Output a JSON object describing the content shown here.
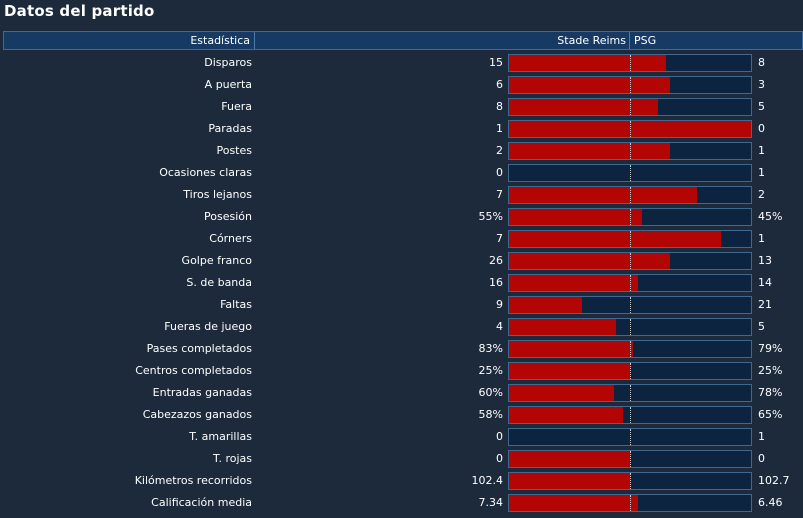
{
  "title": "Datos del partido",
  "header": {
    "stat_label": "Estadística",
    "home_team": "Stade Reims",
    "away_team": "PSG"
  },
  "colors": {
    "home_bar": "#b40505",
    "bar_background": "#0c2440"
  },
  "rows": [
    {
      "label": "Disparos",
      "home": "15",
      "away": "8",
      "home_share": 0.65
    },
    {
      "label": "A puerta",
      "home": "6",
      "away": "3",
      "home_share": 0.667
    },
    {
      "label": "Fuera",
      "home": "8",
      "away": "5",
      "home_share": 0.615
    },
    {
      "label": "Paradas",
      "home": "1",
      "away": "0",
      "home_share": 1.0
    },
    {
      "label": "Postes",
      "home": "2",
      "away": "1",
      "home_share": 0.667
    },
    {
      "label": "Ocasiones claras",
      "home": "0",
      "away": "1",
      "home_share": 0.0
    },
    {
      "label": "Tiros lejanos",
      "home": "7",
      "away": "2",
      "home_share": 0.778
    },
    {
      "label": "Posesión",
      "home": "55%",
      "away": "45%",
      "home_share": 0.55
    },
    {
      "label": "Córners",
      "home": "7",
      "away": "1",
      "home_share": 0.875
    },
    {
      "label": "Golpe franco",
      "home": "26",
      "away": "13",
      "home_share": 0.667
    },
    {
      "label": "S. de banda",
      "home": "16",
      "away": "14",
      "home_share": 0.533
    },
    {
      "label": "Faltas",
      "home": "9",
      "away": "21",
      "home_share": 0.3
    },
    {
      "label": "Fueras de juego",
      "home": "4",
      "away": "5",
      "home_share": 0.444
    },
    {
      "label": "Pases completados",
      "home": "83%",
      "away": "79%",
      "home_share": 0.512
    },
    {
      "label": "Centros completados",
      "home": "25%",
      "away": "25%",
      "home_share": 0.5
    },
    {
      "label": "Entradas ganadas",
      "home": "60%",
      "away": "78%",
      "home_share": 0.435
    },
    {
      "label": "Cabezazos ganados",
      "home": "58%",
      "away": "65%",
      "home_share": 0.472
    },
    {
      "label": "T. amarillas",
      "home": "0",
      "away": "1",
      "home_share": 0.0
    },
    {
      "label": "T. rojas",
      "home": "0",
      "away": "0",
      "home_share": 0.5
    },
    {
      "label": "Kilómetros recorridos",
      "home": "102.4",
      "away": "102.7",
      "home_share": 0.499
    },
    {
      "label": "Calificación media",
      "home": "7.34",
      "away": "6.46",
      "home_share": 0.532
    }
  ]
}
